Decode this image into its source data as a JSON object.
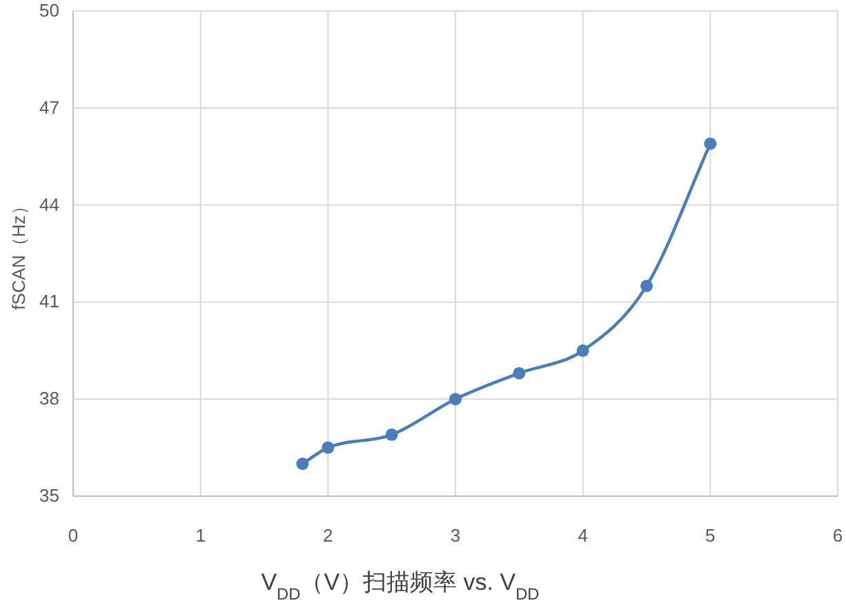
{
  "chart_data": {
    "type": "line",
    "xlabel": "V$_{DD}$（V）扫描频率 vs. V$_{DD}$",
    "ylabel": "fSCAN（Hz）",
    "x": [
      1.8,
      2,
      2.5,
      3,
      3.5,
      4,
      4.5,
      5
    ],
    "series": [
      {
        "color": "#4a7ebb",
        "values": [
          36.0,
          36.5,
          36.9,
          38.0,
          38.8,
          39.5,
          41.5,
          45.9
        ]
      }
    ],
    "xlim": [
      0,
      6
    ],
    "xticks": [
      0,
      1,
      2,
      3,
      4,
      5,
      6
    ],
    "ylim": [
      35,
      50
    ],
    "yticks": [
      35,
      38,
      41,
      44,
      47,
      50
    ],
    "grid": true,
    "marker": "circle",
    "line_style": "solid"
  }
}
